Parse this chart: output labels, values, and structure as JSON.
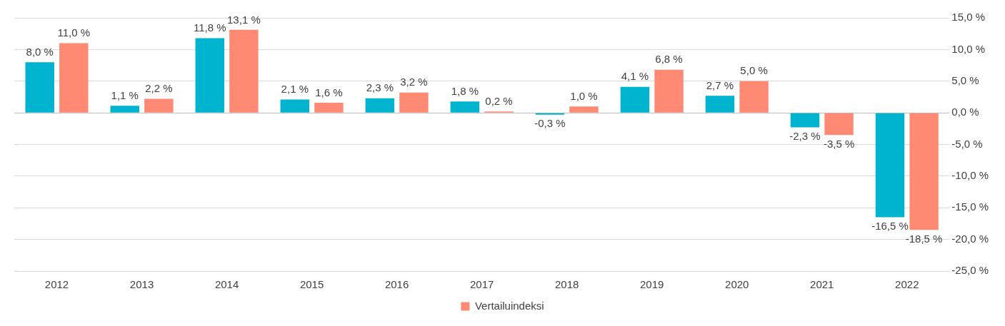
{
  "chart_data": {
    "type": "bar",
    "categories": [
      "2012",
      "2013",
      "2014",
      "2015",
      "2016",
      "2017",
      "2018",
      "2019",
      "2020",
      "2021",
      "2022"
    ],
    "series": [
      {
        "color": "#00b4cf",
        "values": [
          8.0,
          1.1,
          11.8,
          2.1,
          2.3,
          1.8,
          -0.3,
          4.1,
          2.7,
          -2.3,
          -16.5
        ],
        "value_labels": [
          "8,0 %",
          "1,1 %",
          "11,8 %",
          "2,1 %",
          "2,3 %",
          "1,8 %",
          "-0,3 %",
          "4,1 %",
          "2,7 %",
          "-2,3 %",
          "-16,5 %"
        ]
      },
      {
        "name": "Vertailuindeksi",
        "color": "#ff8a73",
        "values": [
          11.0,
          2.2,
          13.1,
          1.6,
          3.2,
          0.2,
          1.0,
          6.8,
          5.0,
          -3.5,
          -18.5
        ],
        "value_labels": [
          "11,0 %",
          "2,2 %",
          "13,1 %",
          "1,6 %",
          "3,2 %",
          "0,2 %",
          "1,0 %",
          "6,8 %",
          "5,0 %",
          "-3,5 %",
          "-18,5 %"
        ]
      }
    ],
    "ylim": [
      -25,
      15
    ],
    "yticks": [
      {
        "value": 15,
        "label": "15,0 %"
      },
      {
        "value": 10,
        "label": "10,0 %"
      },
      {
        "value": 5,
        "label": "5,0 %"
      },
      {
        "value": 0,
        "label": "0,0 %"
      },
      {
        "value": -5,
        "label": "-5,0 %"
      },
      {
        "value": -10,
        "label": "-10,0 %"
      },
      {
        "value": -15,
        "label": "-15,0 %"
      },
      {
        "value": -20,
        "label": "-20,0 %"
      },
      {
        "value": -25,
        "label": "-25,0 %"
      }
    ],
    "grid": "y",
    "legend": "bottom"
  }
}
